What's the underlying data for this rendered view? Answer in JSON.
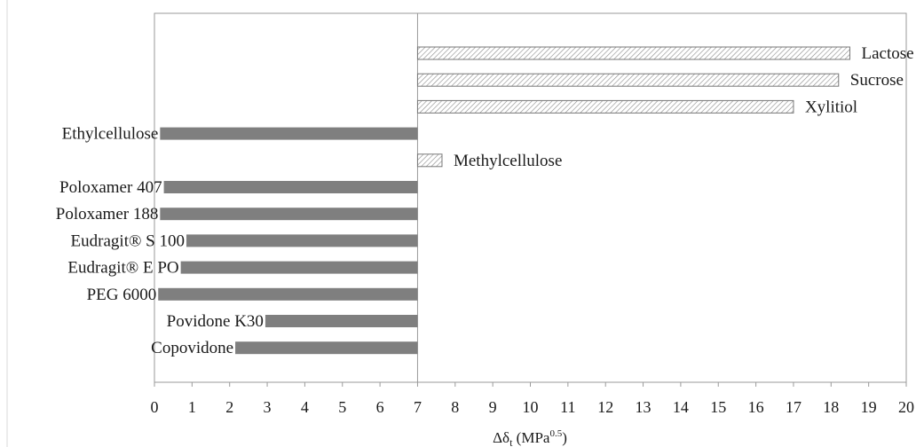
{
  "chart_data": {
    "type": "bar",
    "orientation": "horizontal",
    "xlabel": "Δδ",
    "xlabel_sub": "t",
    "xlabel_unit_open": " (MPa",
    "xlabel_unit_sup": "0.5",
    "xlabel_unit_close": ")",
    "xlim": [
      0,
      20
    ],
    "xticks": [
      "0",
      "1",
      "2",
      "3",
      "4",
      "5",
      "6",
      "7",
      "8",
      "9",
      "10",
      "11",
      "12",
      "13",
      "14",
      "15",
      "16",
      "17",
      "18",
      "19",
      "20"
    ],
    "baseline": 7,
    "grid": false,
    "legend": "none",
    "colors": {
      "solid": "#7f7f7f",
      "hatch_stroke": "#777777",
      "hatch_fill": "#ffffff"
    },
    "bars": [
      {
        "label": "Lactose",
        "start": 7.0,
        "end": 18.5,
        "style": "hatched"
      },
      {
        "label": "Sucrose",
        "start": 7.0,
        "end": 18.2,
        "style": "hatched"
      },
      {
        "label": "Xylitiol",
        "start": 7.0,
        "end": 17.0,
        "style": "hatched"
      },
      {
        "label": "Ethylcellulose",
        "start": 0.15,
        "end": 7.0,
        "style": "solid"
      },
      {
        "label": "Methylcellulose",
        "start": 7.0,
        "end": 7.65,
        "style": "hatched"
      },
      {
        "label": "Poloxamer 407",
        "start": 0.25,
        "end": 7.0,
        "style": "solid"
      },
      {
        "label": "Poloxamer 188",
        "start": 0.15,
        "end": 7.0,
        "style": "solid"
      },
      {
        "label": "Eudragit® S 100",
        "start": 0.85,
        "end": 7.0,
        "style": "solid"
      },
      {
        "label": "Eudragit® E PO",
        "start": 0.7,
        "end": 7.0,
        "style": "solid"
      },
      {
        "label": "PEG 6000",
        "start": 0.1,
        "end": 7.0,
        "style": "solid"
      },
      {
        "label": "Povidone K30",
        "start": 2.95,
        "end": 7.0,
        "style": "solid"
      },
      {
        "label": "Copovidone",
        "start": 2.15,
        "end": 7.0,
        "style": "solid"
      }
    ]
  }
}
